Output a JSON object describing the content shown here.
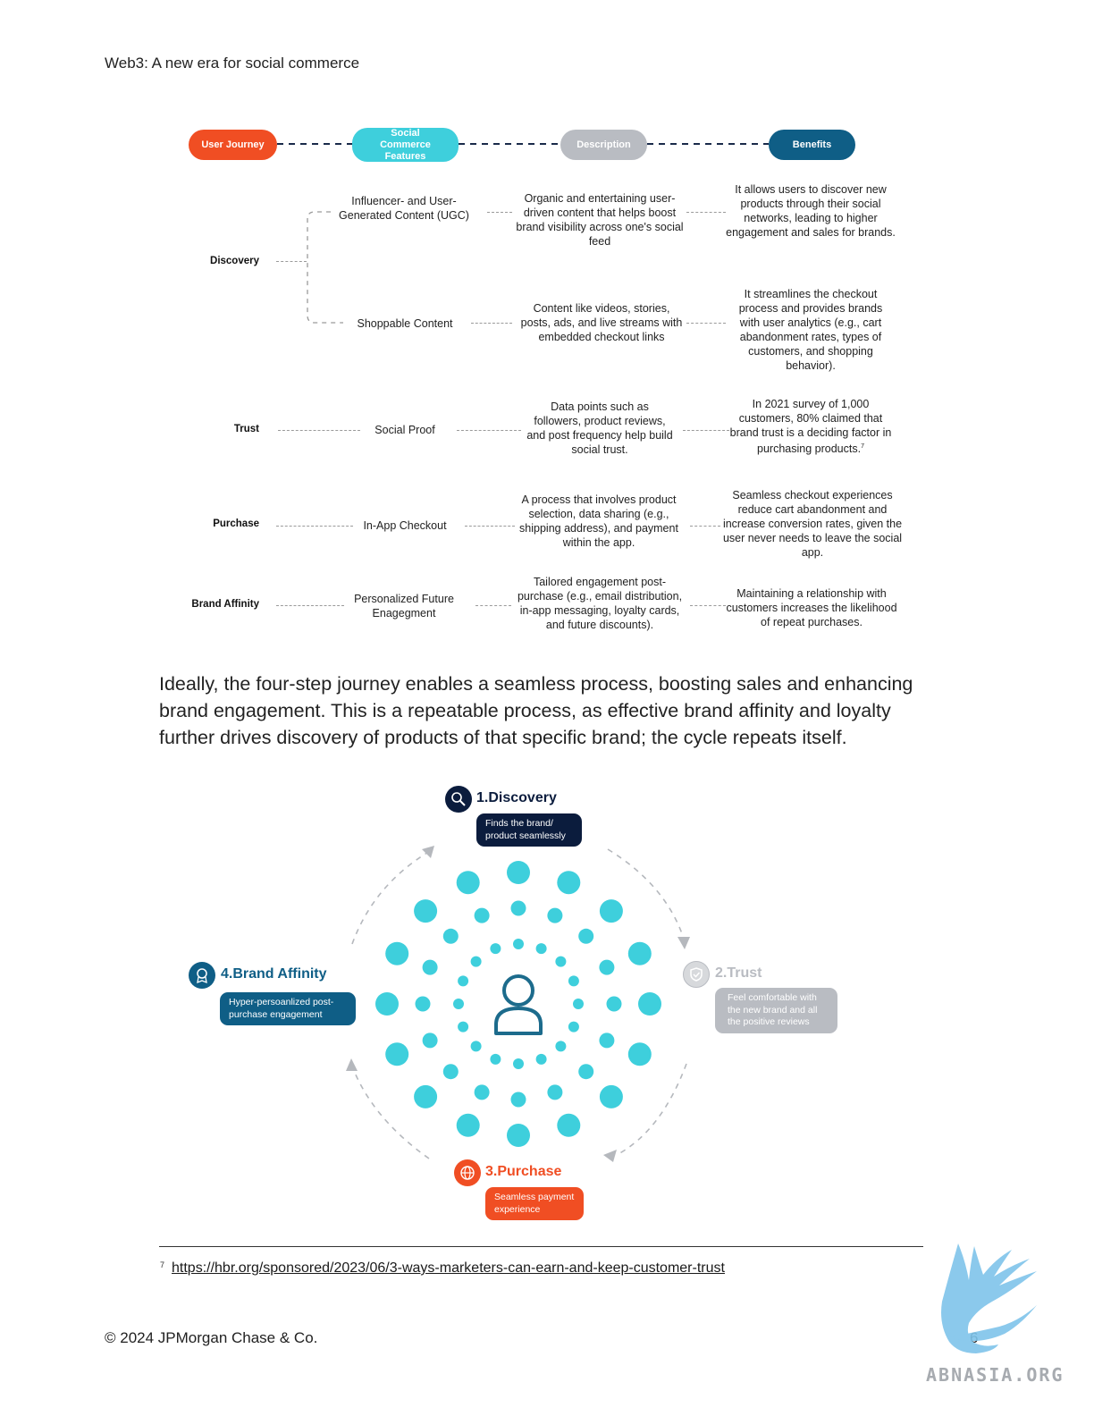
{
  "header": {
    "title": "Web3: A new era for social commerce"
  },
  "table": {
    "columns": [
      {
        "label": "User Journey",
        "color": "#F04E23"
      },
      {
        "label": "Social Commerce Features",
        "color": "#3ECFDC"
      },
      {
        "label": "Description",
        "color": "#B9BCC2"
      },
      {
        "label": "Benefits",
        "color": "#0F5E86"
      }
    ],
    "stages": {
      "discovery": "Discovery",
      "trust": "Trust",
      "purchase": "Purchase",
      "brand_affinity": "Brand Affinity"
    },
    "rows": [
      {
        "feature": "Influencer- and User-Generated Content (UGC)",
        "description": "Organic and entertaining user-driven content that helps boost brand visibility across one's social feed",
        "benefit": "It allows users to discover new products through their social networks, leading to higher engagement and sales for brands."
      },
      {
        "feature": "Shoppable Content",
        "description": "Content like videos, stories, posts, ads, and live streams with embedded checkout links",
        "benefit": "It streamlines the checkout process and provides brands with user analytics (e.g., cart abandonment rates, types of customers, and shopping behavior)."
      },
      {
        "feature": "Social Proof",
        "description": "Data points such as followers, product reviews, and post frequency help build social trust.",
        "benefit": "In 2021 survey of 1,000 customers, 80% claimed that brand trust is a deciding factor in purchasing products.",
        "benefit_sup": "7"
      },
      {
        "feature": "In-App Checkout",
        "description": "A process that involves product selection, data sharing (e.g., shipping address), and payment within the app.",
        "benefit": "Seamless checkout experiences reduce cart abandonment and increase conversion rates, given the user never needs to leave the social app."
      },
      {
        "feature": "Personalized Future Enagegment",
        "description": "Tailored engagement post-purchase (e.g., email distribution, in-app messaging, loyalty cards, and future discounts).",
        "benefit": "Maintaining a relationship with customers increases the likelihood of repeat purchases."
      }
    ]
  },
  "body": {
    "paragraph": "Ideally, the four-step journey enables a seamless process, boosting sales and enhancing brand engagement. This is a repeatable process, as effective brand affinity and loyalty further drives discovery of products of that specific brand; the cycle repeats itself."
  },
  "cycle": {
    "steps": [
      {
        "title": "1.Discovery",
        "text": "Finds the brand/ product seamlessly",
        "color": "#0B1C3D",
        "icon": "magnifier-icon"
      },
      {
        "title": "2.Trust",
        "text": "Feel comfortable with the new brand and all the positive reviews",
        "color": "#B9BCC2",
        "icon": "shield-check-icon"
      },
      {
        "title": "3.Purchase",
        "text": "Seamless payment experience",
        "color": "#F04E23",
        "icon": "globe-cart-icon"
      },
      {
        "title": "4.Brand Affinity",
        "text": "Hyper-persoanlized post-purchase engagement",
        "color": "#0F5E86",
        "icon": "award-badge-icon"
      }
    ],
    "dot_color": "#3ECFDC",
    "center_icon": "person-icon"
  },
  "footnote": {
    "number": "7",
    "link": "https://hbr.org/sponsored/2023/06/3-ways-marketers-can-earn-and-keep-customer-trust"
  },
  "footer": {
    "copyright": "© 2024 JPMorgan Chase & Co.",
    "page_number": "6"
  },
  "watermark": {
    "text": "ABNASIA.ORG"
  }
}
